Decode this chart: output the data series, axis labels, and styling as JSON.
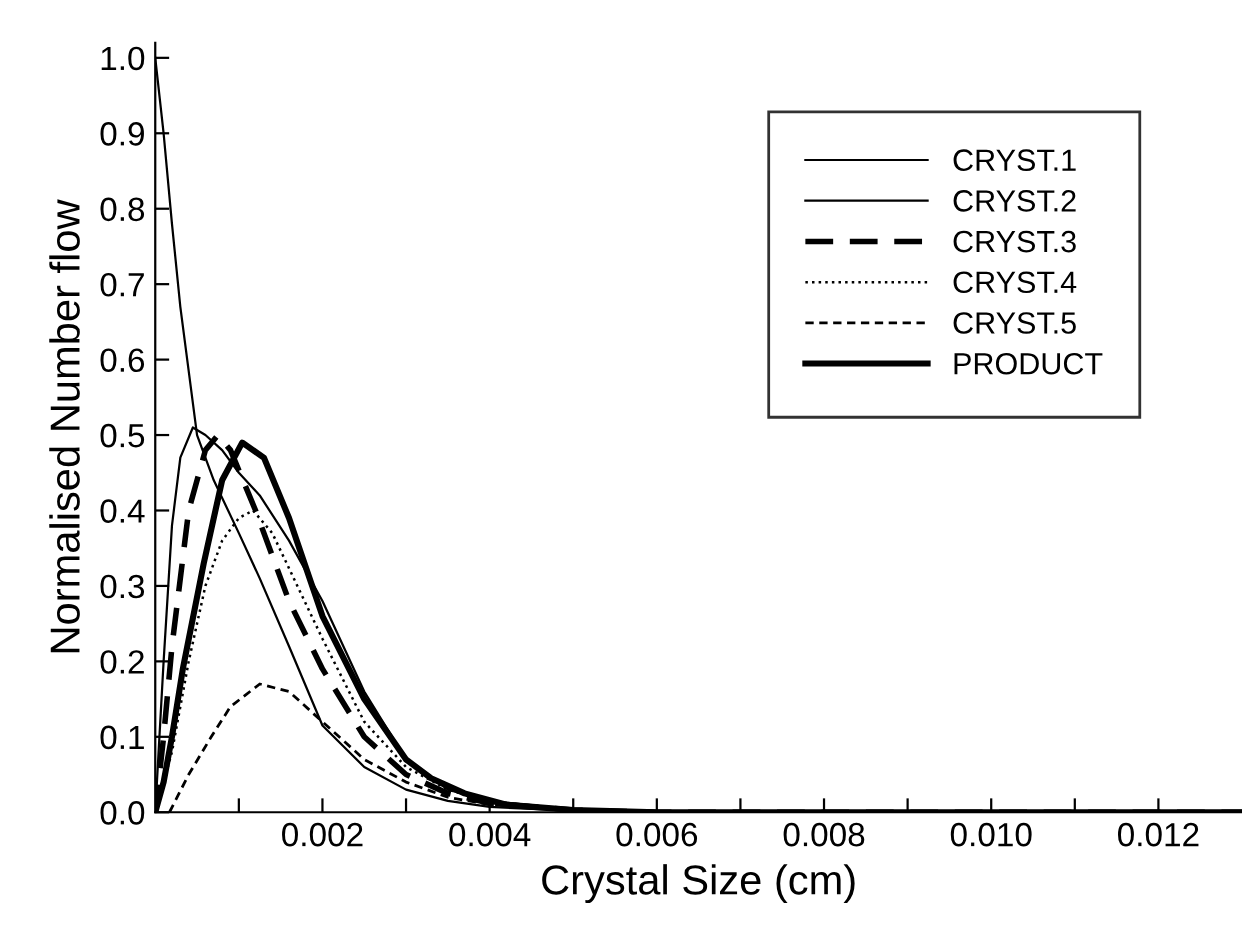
{
  "chart_data": {
    "type": "line",
    "xlabel": "Crystal Size (cm)",
    "ylabel": "Normalised Number flow",
    "xlim": [
      0,
      0.013
    ],
    "ylim": [
      0,
      1.02
    ],
    "xticks": [
      {
        "value": 0.001,
        "label": null
      },
      {
        "value": 0.002,
        "label": "0.002"
      },
      {
        "value": 0.003,
        "label": null
      },
      {
        "value": 0.004,
        "label": "0.004"
      },
      {
        "value": 0.005,
        "label": null
      },
      {
        "value": 0.006,
        "label": "0.006"
      },
      {
        "value": 0.007,
        "label": null
      },
      {
        "value": 0.008,
        "label": "0.008"
      },
      {
        "value": 0.009,
        "label": null
      },
      {
        "value": 0.01,
        "label": "0.010"
      },
      {
        "value": 0.011,
        "label": null
      },
      {
        "value": 0.012,
        "label": "0.012"
      }
    ],
    "yticks": [
      {
        "value": 0,
        "label": "0.0"
      },
      {
        "value": 0.1,
        "label": "0.1"
      },
      {
        "value": 0.2,
        "label": "0.2"
      },
      {
        "value": 0.3,
        "label": "0.3"
      },
      {
        "value": 0.4,
        "label": "0.4"
      },
      {
        "value": 0.5,
        "label": "0.5"
      },
      {
        "value": 0.6,
        "label": "0.6"
      },
      {
        "value": 0.7,
        "label": "0.7"
      },
      {
        "value": 0.8,
        "label": "0.8"
      },
      {
        "value": 0.9,
        "label": "0.9"
      },
      {
        "value": 1.0,
        "label": "1.0"
      }
    ],
    "grid": false,
    "legend": "top right",
    "marker": "none",
    "series": [
      {
        "name": "CRYST.1",
        "color": "#000000",
        "line_style": "solid",
        "x": [
          0,
          0.0001,
          0.0002,
          0.0003,
          0.0005,
          0.0007,
          0.001,
          0.00125,
          0.0016,
          0.002,
          0.0025,
          0.003,
          0.0035,
          0.004,
          0.005,
          0.006,
          0.013
        ],
        "values": [
          1.0,
          0.9,
          0.78,
          0.67,
          0.5,
          0.44,
          0.37,
          0.31,
          0.22,
          0.115,
          0.06,
          0.03,
          0.015,
          0.007,
          0.002,
          0,
          0
        ]
      },
      {
        "name": "CRYST.2",
        "color": "#000000",
        "line_style": "solid",
        "x": [
          0,
          0.0001,
          0.0002,
          0.0003,
          0.00045,
          0.0006,
          0.0008,
          0.001,
          0.00125,
          0.0016,
          0.002,
          0.0025,
          0.003,
          0.0035,
          0.004,
          0.005,
          0.006,
          0.013
        ],
        "values": [
          0,
          0.2,
          0.38,
          0.47,
          0.51,
          0.5,
          0.48,
          0.45,
          0.42,
          0.36,
          0.28,
          0.16,
          0.07,
          0.03,
          0.015,
          0.004,
          0,
          0
        ]
      },
      {
        "name": "CRYST.3",
        "color": "#000000",
        "line_style": "dashed",
        "x": [
          0,
          0.0001,
          0.0002,
          0.0004,
          0.0006,
          0.00075,
          0.0009,
          0.0012,
          0.0016,
          0.002,
          0.0025,
          0.003,
          0.0035,
          0.004,
          0.005,
          0.006,
          0.013
        ],
        "values": [
          0,
          0.1,
          0.22,
          0.4,
          0.48,
          0.5,
          0.48,
          0.4,
          0.28,
          0.19,
          0.1,
          0.05,
          0.025,
          0.012,
          0.003,
          0,
          0
        ]
      },
      {
        "name": "CRYST.4",
        "color": "#000000",
        "line_style": "dotted",
        "x": [
          0,
          0.0002,
          0.0004,
          0.0006,
          0.0008,
          0.001,
          0.00117,
          0.0014,
          0.0017,
          0.002,
          0.0025,
          0.003,
          0.0035,
          0.004,
          0.005,
          0.006,
          0.013
        ],
        "values": [
          0,
          0.08,
          0.2,
          0.3,
          0.36,
          0.39,
          0.4,
          0.37,
          0.3,
          0.23,
          0.12,
          0.06,
          0.03,
          0.014,
          0.004,
          0,
          0
        ]
      },
      {
        "name": "CRYST.5",
        "color": "#000000",
        "line_style": "dashed",
        "x": [
          0.00017,
          0.0004,
          0.00067,
          0.0009,
          0.00125,
          0.0016,
          0.002,
          0.0025,
          0.003,
          0.0035,
          0.004,
          0.005,
          0.006,
          0.013
        ],
        "values": [
          0,
          0.05,
          0.1,
          0.14,
          0.17,
          0.16,
          0.12,
          0.07,
          0.04,
          0.02,
          0.01,
          0.003,
          0,
          0
        ]
      },
      {
        "name": "PRODUCT",
        "color": "#000000",
        "line_style": "solid",
        "x": [
          0,
          0.0001,
          0.0002,
          0.00033,
          0.00058,
          0.0008,
          0.00104,
          0.0013,
          0.0016,
          0.002,
          0.0025,
          0.003,
          0.0033,
          0.0037,
          0.0042,
          0.005,
          0.006,
          0.013
        ],
        "values": [
          0,
          0.04,
          0.1,
          0.19,
          0.33,
          0.44,
          0.49,
          0.47,
          0.39,
          0.26,
          0.15,
          0.07,
          0.045,
          0.025,
          0.01,
          0.003,
          0,
          0
        ]
      }
    ]
  }
}
